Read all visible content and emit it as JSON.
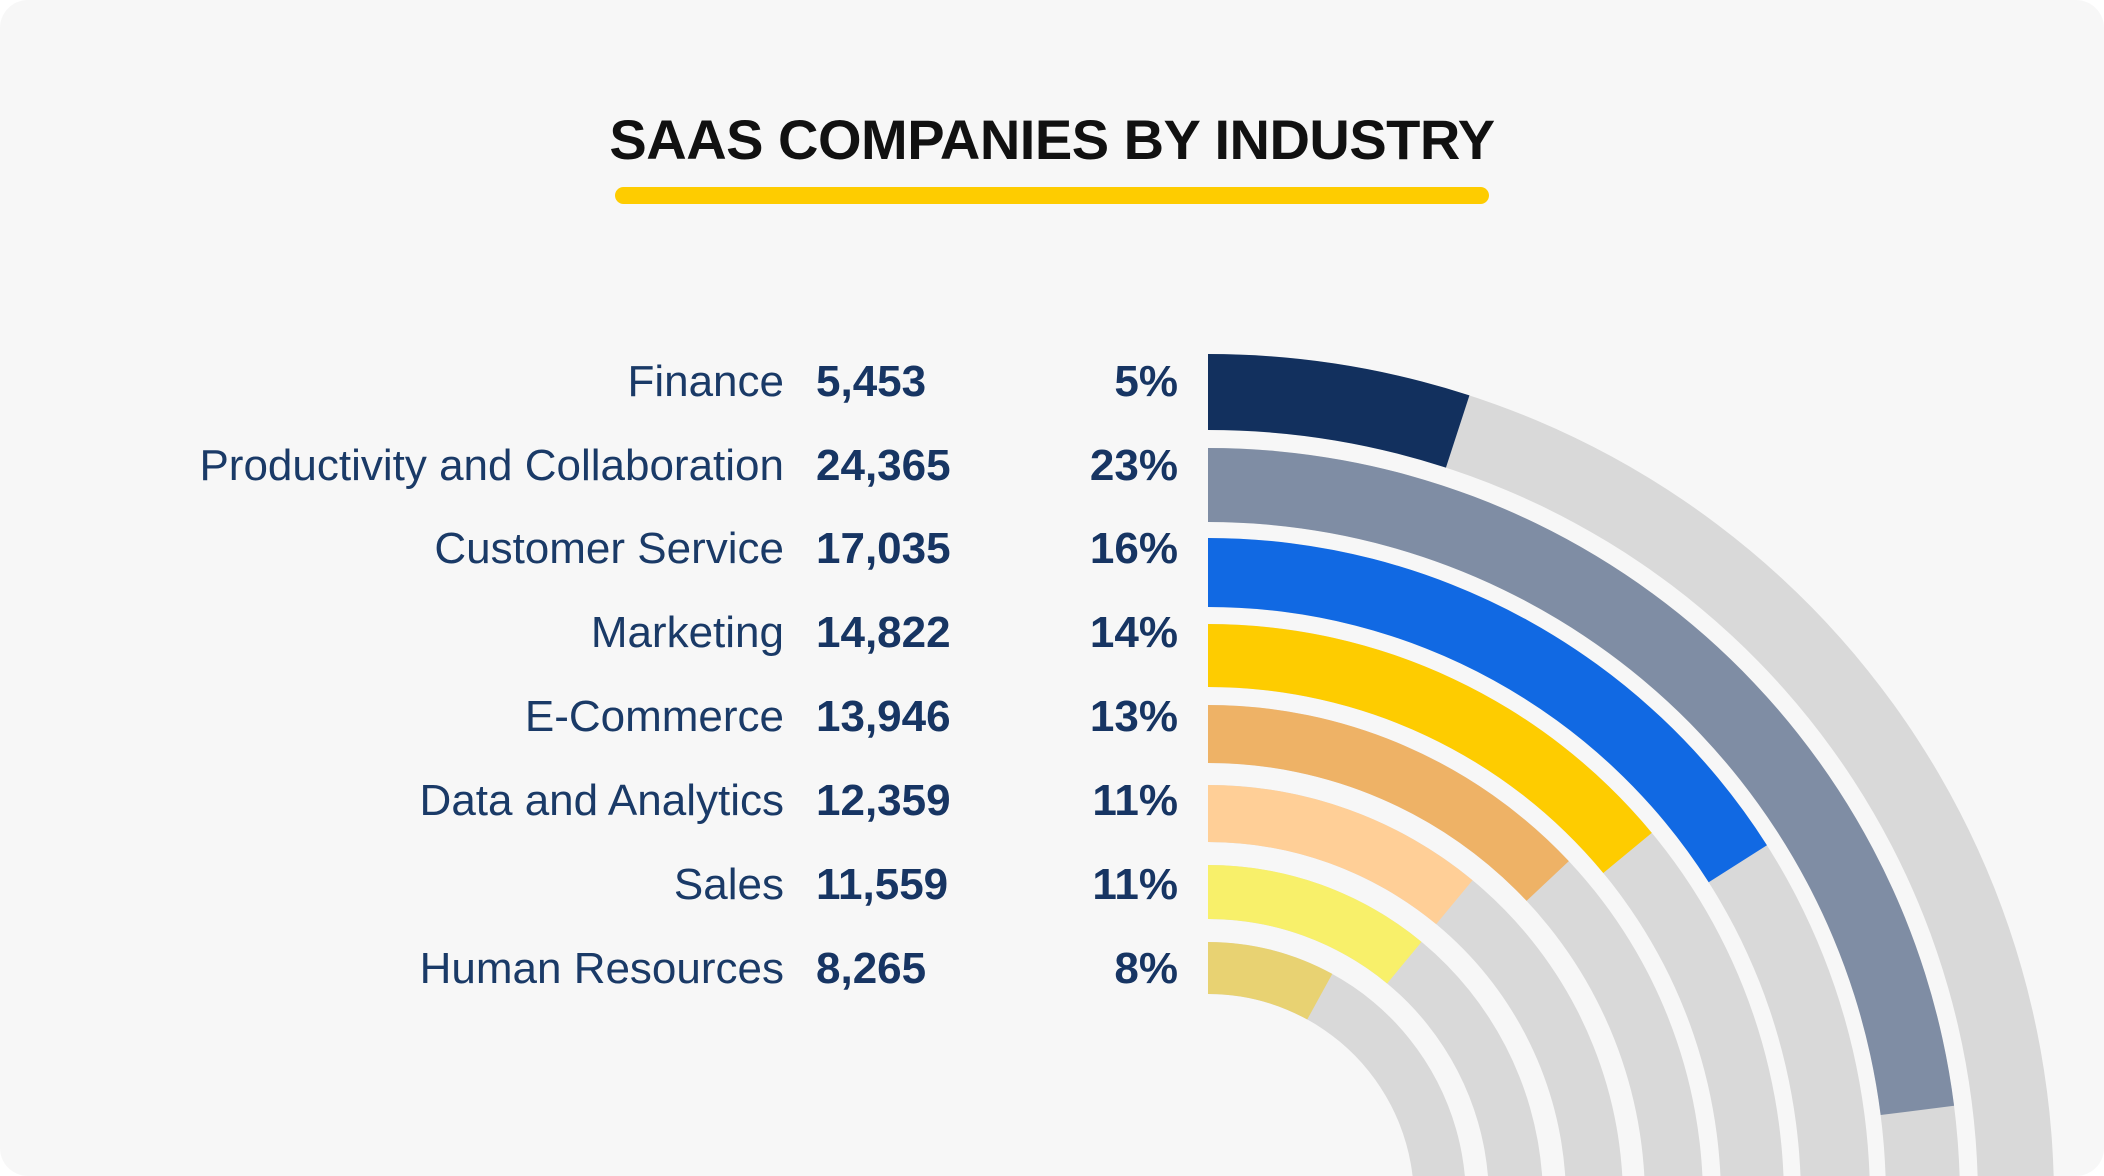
{
  "colors": {
    "background": "#f7f7f7",
    "accent_underline": "#fecc00",
    "track": "#d9d9d9",
    "text": "#1a3a67"
  },
  "chart_data": {
    "type": "radial-bar",
    "title": "SAAS COMPANIES BY INDUSTRY",
    "categories": [
      "Finance",
      "Productivity and Collaboration",
      "Customer Service",
      "Marketing",
      "E-Commerce",
      "Data and Analytics",
      "Sales",
      "Human Resources"
    ],
    "values": [
      5453,
      24365,
      17035,
      14822,
      13946,
      12359,
      11559,
      8265
    ],
    "value_labels": [
      "5,453",
      "24,365",
      "17,035",
      "14,822",
      "13,946",
      "12,359",
      "11,559",
      "8,265"
    ],
    "percent_labels": [
      "5%",
      "23%",
      "16%",
      "14%",
      "13%",
      "11%",
      "11%",
      "8%"
    ],
    "percents": [
      5,
      23,
      16,
      14,
      13,
      11,
      11,
      8
    ],
    "max_percent": 25,
    "colors": [
      "#12305e",
      "#7f8da4",
      "#1169e3",
      "#fecc00",
      "#eeb266",
      "#ffcf97",
      "#f8f06a",
      "#e8d272"
    ],
    "track_color": "#d9d9d9",
    "legend": "none",
    "grid": false
  }
}
